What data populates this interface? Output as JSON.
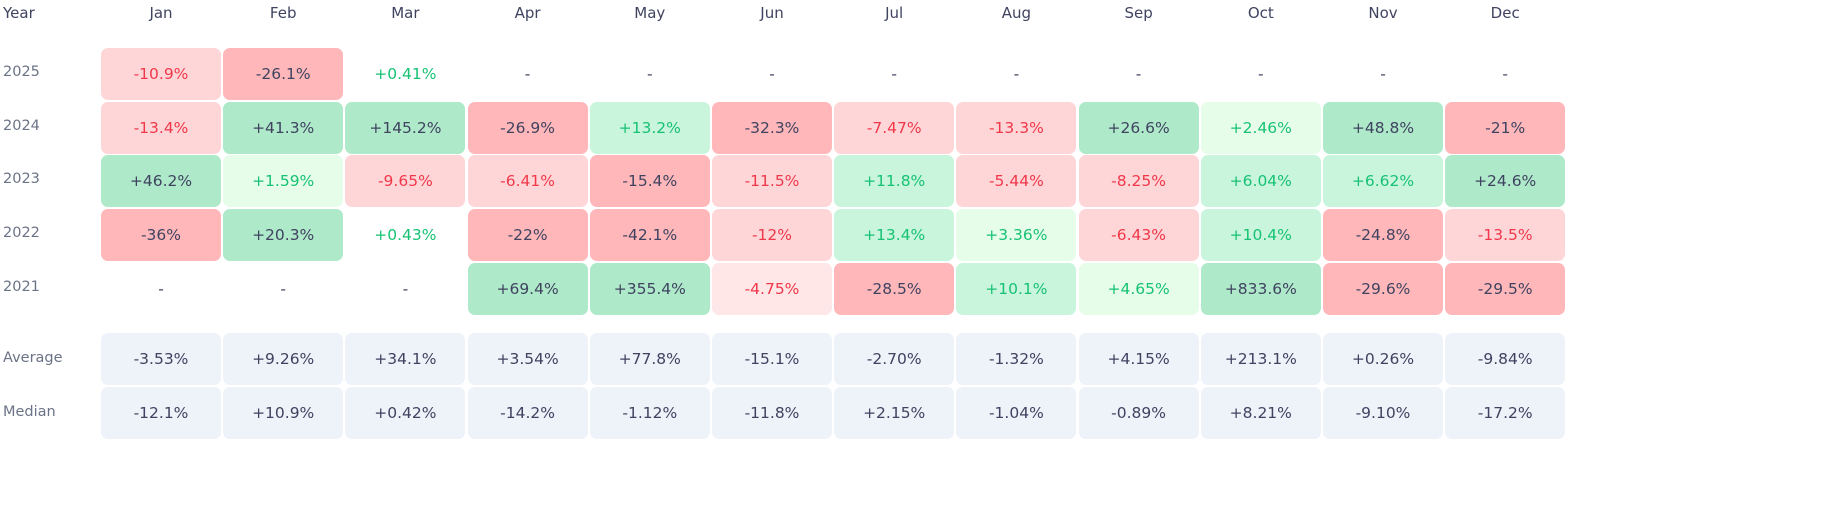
{
  "header": {
    "year_label": "Year",
    "months": [
      "Jan",
      "Feb",
      "Mar",
      "Apr",
      "May",
      "Jun",
      "Jul",
      "Aug",
      "Sep",
      "Oct",
      "Nov",
      "Dec"
    ]
  },
  "colors": {
    "strong-neg": {
      "bg": "#ffb7ba",
      "fg": "#3f4360"
    },
    "neg": {
      "bg": "#ffd6d8",
      "fg": "#f0384a"
    },
    "weak-neg": {
      "bg": "#ffe6e7",
      "fg": "#f0384a"
    },
    "strong-pos": {
      "bg": "#aee9c9",
      "fg": "#3f4360"
    },
    "pos": {
      "bg": "#c8f5dc",
      "fg": "#17c274"
    },
    "weak-pos": {
      "bg": "#e6fde9",
      "fg": "#17c274"
    },
    "flat-pos": {
      "bg": "transparent",
      "fg": "#17c274"
    },
    "empty": {
      "bg": "transparent",
      "fg": "#3f4360"
    }
  },
  "rows": [
    {
      "year": "2025",
      "cells": [
        {
          "v": "-10.9%",
          "c": "neg"
        },
        {
          "v": "-26.1%",
          "c": "strong-neg"
        },
        {
          "v": "+0.41%",
          "c": "flat-pos"
        },
        {
          "v": "-",
          "c": "empty"
        },
        {
          "v": "-",
          "c": "empty"
        },
        {
          "v": "-",
          "c": "empty"
        },
        {
          "v": "-",
          "c": "empty"
        },
        {
          "v": "-",
          "c": "empty"
        },
        {
          "v": "-",
          "c": "empty"
        },
        {
          "v": "-",
          "c": "empty"
        },
        {
          "v": "-",
          "c": "empty"
        },
        {
          "v": "-",
          "c": "empty"
        }
      ]
    },
    {
      "year": "2024",
      "cells": [
        {
          "v": "-13.4%",
          "c": "neg"
        },
        {
          "v": "+41.3%",
          "c": "strong-pos"
        },
        {
          "v": "+145.2%",
          "c": "strong-pos"
        },
        {
          "v": "-26.9%",
          "c": "strong-neg"
        },
        {
          "v": "+13.2%",
          "c": "pos"
        },
        {
          "v": "-32.3%",
          "c": "strong-neg"
        },
        {
          "v": "-7.47%",
          "c": "neg"
        },
        {
          "v": "-13.3%",
          "c": "neg"
        },
        {
          "v": "+26.6%",
          "c": "strong-pos"
        },
        {
          "v": "+2.46%",
          "c": "weak-pos"
        },
        {
          "v": "+48.8%",
          "c": "strong-pos"
        },
        {
          "v": "-21%",
          "c": "strong-neg"
        }
      ]
    },
    {
      "year": "2023",
      "cells": [
        {
          "v": "+46.2%",
          "c": "strong-pos"
        },
        {
          "v": "+1.59%",
          "c": "weak-pos"
        },
        {
          "v": "-9.65%",
          "c": "neg"
        },
        {
          "v": "-6.41%",
          "c": "neg"
        },
        {
          "v": "-15.4%",
          "c": "strong-neg"
        },
        {
          "v": "-11.5%",
          "c": "neg"
        },
        {
          "v": "+11.8%",
          "c": "pos"
        },
        {
          "v": "-5.44%",
          "c": "neg"
        },
        {
          "v": "-8.25%",
          "c": "neg"
        },
        {
          "v": "+6.04%",
          "c": "pos"
        },
        {
          "v": "+6.62%",
          "c": "pos"
        },
        {
          "v": "+24.6%",
          "c": "strong-pos"
        }
      ]
    },
    {
      "year": "2022",
      "cells": [
        {
          "v": "-36%",
          "c": "strong-neg"
        },
        {
          "v": "+20.3%",
          "c": "strong-pos"
        },
        {
          "v": "+0.43%",
          "c": "flat-pos"
        },
        {
          "v": "-22%",
          "c": "strong-neg"
        },
        {
          "v": "-42.1%",
          "c": "strong-neg"
        },
        {
          "v": "-12%",
          "c": "neg"
        },
        {
          "v": "+13.4%",
          "c": "pos"
        },
        {
          "v": "+3.36%",
          "c": "weak-pos"
        },
        {
          "v": "-6.43%",
          "c": "neg"
        },
        {
          "v": "+10.4%",
          "c": "pos"
        },
        {
          "v": "-24.8%",
          "c": "strong-neg"
        },
        {
          "v": "-13.5%",
          "c": "neg"
        }
      ]
    },
    {
      "year": "2021",
      "cells": [
        {
          "v": "-",
          "c": "empty"
        },
        {
          "v": "-",
          "c": "empty"
        },
        {
          "v": "-",
          "c": "empty"
        },
        {
          "v": "+69.4%",
          "c": "strong-pos"
        },
        {
          "v": "+355.4%",
          "c": "strong-pos"
        },
        {
          "v": "-4.75%",
          "c": "weak-neg"
        },
        {
          "v": "-28.5%",
          "c": "strong-neg"
        },
        {
          "v": "+10.1%",
          "c": "pos"
        },
        {
          "v": "+4.65%",
          "c": "weak-pos"
        },
        {
          "v": "+833.6%",
          "c": "strong-pos"
        },
        {
          "v": "-29.6%",
          "c": "strong-neg"
        },
        {
          "v": "-29.5%",
          "c": "strong-neg"
        }
      ]
    }
  ],
  "summary": [
    {
      "label": "Average",
      "values": [
        "-3.53%",
        "+9.26%",
        "+34.1%",
        "+3.54%",
        "+77.8%",
        "-15.1%",
        "-2.70%",
        "-1.32%",
        "+4.15%",
        "+213.1%",
        "+0.26%",
        "-9.84%"
      ]
    },
    {
      "label": "Median",
      "values": [
        "-12.1%",
        "+10.9%",
        "+0.42%",
        "-14.2%",
        "-1.12%",
        "-11.8%",
        "+2.15%",
        "-1.04%",
        "-0.89%",
        "+8.21%",
        "-9.10%",
        "-17.2%"
      ]
    }
  ]
}
